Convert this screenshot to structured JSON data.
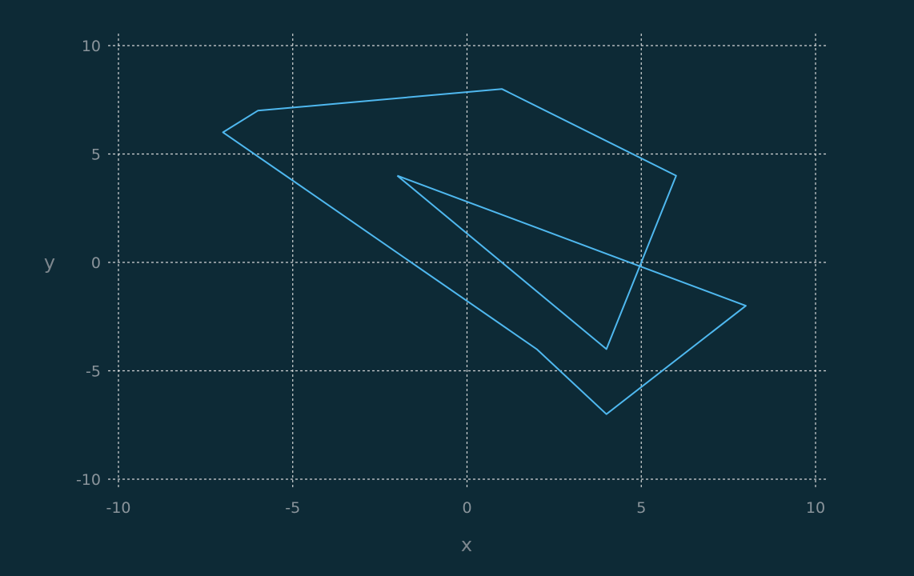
{
  "chart_data": {
    "type": "line",
    "title": "",
    "xlabel": "x",
    "ylabel": "y",
    "xlim": [
      -10,
      10
    ],
    "ylim": [
      -10,
      10
    ],
    "x_ticks": [
      -10,
      -5,
      0,
      5,
      10
    ],
    "y_ticks": [
      -10,
      -5,
      0,
      5,
      10
    ],
    "grid": true,
    "legend": "none",
    "background_color": "#0d2a36",
    "series": [
      {
        "color": "#4fb8ef",
        "points": [
          [
            -2,
            4
          ],
          [
            8,
            -2
          ],
          [
            4,
            -7
          ],
          [
            2,
            -4
          ],
          [
            -7,
            6
          ],
          [
            -6,
            7
          ],
          [
            1,
            8
          ],
          [
            6,
            4
          ],
          [
            4,
            -4
          ],
          [
            -2,
            4
          ]
        ]
      }
    ]
  }
}
